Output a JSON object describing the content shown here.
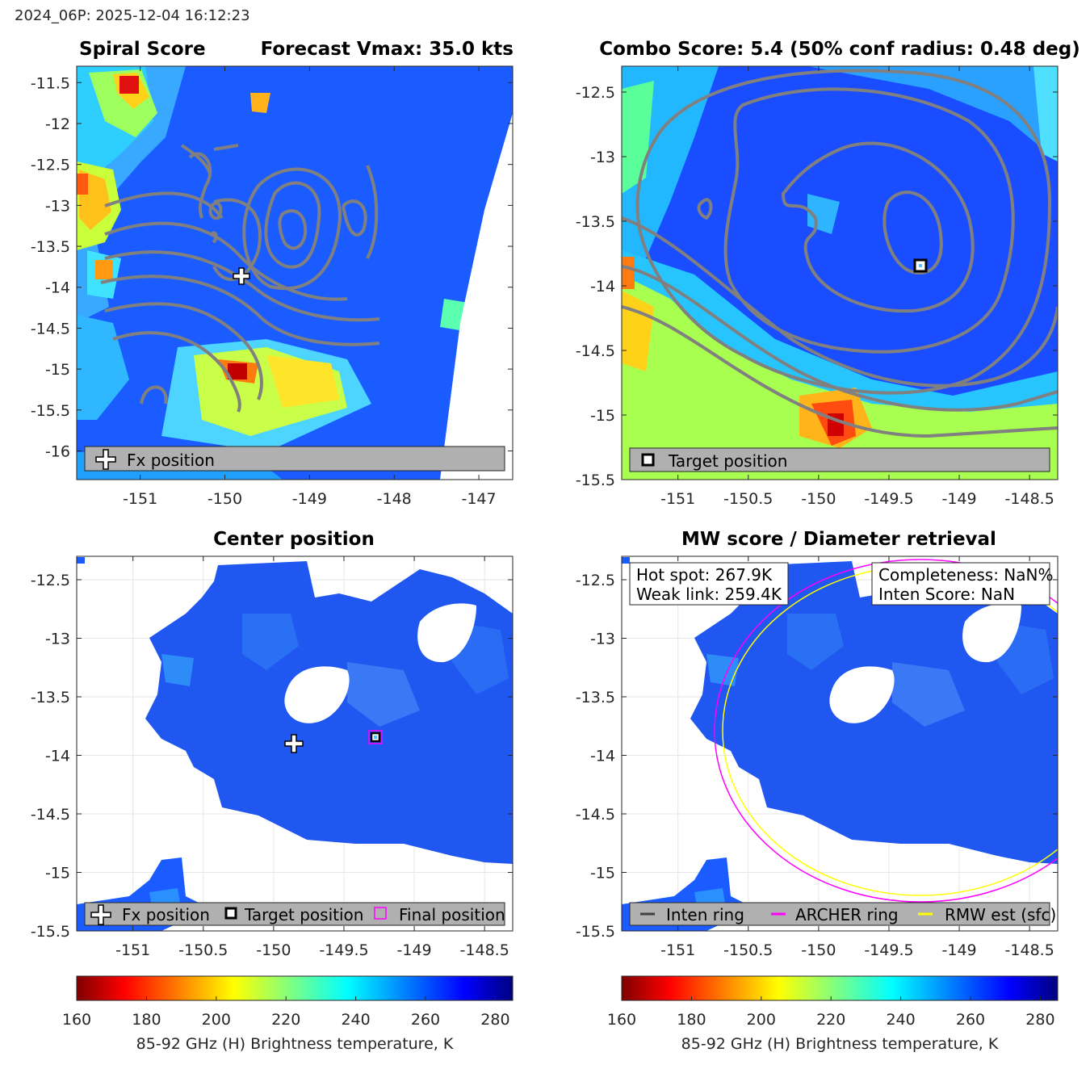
{
  "header": {
    "stamp": "2024_06P: 2025-12-04 16:12:23"
  },
  "chart_data": [
    {
      "type": "heatmap",
      "panel": "top-left",
      "title_left": "Spiral Score",
      "title_right": "Forecast Vmax: 35.0 kts",
      "xlim": [
        -151.75,
        -146.6
      ],
      "ylim": [
        -16.35,
        -11.3
      ],
      "xticks": [
        "-151",
        "-150",
        "-149",
        "-148",
        "-147"
      ],
      "xtick_values": [
        -151,
        -150,
        -149,
        -148,
        -147
      ],
      "yticks": [
        "-11.5",
        "-12",
        "-12.5",
        "-13",
        "-13.5",
        "-14",
        "-14.5",
        "-15",
        "-15.5",
        "-16"
      ],
      "ytick_values": [
        -11.5,
        -12,
        -12.5,
        -13,
        -13.5,
        -14,
        -14.5,
        -15,
        -15.5,
        -16
      ],
      "legend": [
        {
          "symbol": "plus",
          "label": "Fx position"
        }
      ],
      "markers": [
        {
          "name": "Fx position",
          "x": -149.8,
          "y": -13.9,
          "symbol": "plus"
        }
      ]
    },
    {
      "type": "heatmap",
      "panel": "top-right",
      "title": "Combo Score: 5.4  (50% conf radius: 0.48 deg)",
      "xlim": [
        -151.4,
        -148.3
      ],
      "ylim": [
        -15.5,
        -12.3
      ],
      "xticks": [
        "-151",
        "-150.5",
        "-150",
        "-149.5",
        "-149",
        "-148.5"
      ],
      "xtick_values": [
        -151,
        -150.5,
        -150,
        -149.5,
        -149,
        -148.5
      ],
      "yticks": [
        "-12.5",
        "-13",
        "-13.5",
        "-14",
        "-14.5",
        "-15",
        "-15.5"
      ],
      "ytick_values": [
        -12.5,
        -13,
        -13.5,
        -14,
        -14.5,
        -15,
        -15.5
      ],
      "legend": [
        {
          "symbol": "square",
          "label": "Target position"
        }
      ],
      "markers": [
        {
          "name": "Target position",
          "x": -149.18,
          "y": -13.85,
          "symbol": "square"
        }
      ]
    },
    {
      "type": "heatmap",
      "panel": "bottom-left",
      "title": "Center position",
      "xlim": [
        -151.4,
        -148.3
      ],
      "ylim": [
        -15.5,
        -12.3
      ],
      "xticks": [
        "-151",
        "-150.5",
        "-150",
        "-149.5",
        "-149",
        "-148.5"
      ],
      "xtick_values": [
        -151,
        -150.5,
        -150,
        -149.5,
        -149,
        -148.5
      ],
      "yticks": [
        "-12.5",
        "-13",
        "-13.5",
        "-14",
        "-14.5",
        "-15",
        "-15.5"
      ],
      "ytick_values": [
        -12.5,
        -13,
        -13.5,
        -14,
        -14.5,
        -15,
        -15.5
      ],
      "legend": [
        {
          "symbol": "plus",
          "label": "Fx position"
        },
        {
          "symbol": "square",
          "label": "Target position"
        },
        {
          "symbol": "magenta-square",
          "label": "Final position"
        }
      ],
      "markers": [
        {
          "name": "Fx position",
          "x": -149.8,
          "y": -13.9,
          "symbol": "plus"
        },
        {
          "name": "Target position",
          "x": -149.18,
          "y": -13.85,
          "symbol": "square"
        }
      ]
    },
    {
      "type": "heatmap",
      "panel": "bottom-right",
      "title": "MW score / Diameter retrieval",
      "xlim": [
        -151.4,
        -148.3
      ],
      "ylim": [
        -15.5,
        -12.3
      ],
      "xticks": [
        "-151",
        "-150.5",
        "-150",
        "-149.5",
        "-149",
        "-148.5"
      ],
      "xtick_values": [
        -151,
        -150.5,
        -150,
        -149.5,
        -149,
        -148.5
      ],
      "yticks": [
        "-12.5",
        "-13",
        "-13.5",
        "-14",
        "-14.5",
        "-15",
        "-15.5"
      ],
      "ytick_values": [
        -12.5,
        -13,
        -13.5,
        -14,
        -14.5,
        -15,
        -15.5
      ],
      "annotations_left": [
        "Hot spot: 267.9K",
        "Weak link: 259.4K"
      ],
      "annotations_right": [
        "Completeness: NaN%",
        "Inten Score: NaN"
      ],
      "legend": [
        {
          "symbol": "line",
          "color": "#404040",
          "label": "Inten ring"
        },
        {
          "symbol": "line",
          "color": "#ff00ff",
          "label": "ARCHER ring"
        },
        {
          "symbol": "line",
          "color": "#ffff00",
          "label": "RMW est (sfc)"
        }
      ]
    }
  ],
  "colorbar": {
    "min": 160,
    "max": 285,
    "ticks": [
      "160",
      "180",
      "200",
      "220",
      "240",
      "260",
      "280"
    ],
    "tick_values": [
      160,
      180,
      200,
      220,
      240,
      260,
      280
    ],
    "label": "85-92 GHz (H) Brightness temperature, K",
    "colormap": "jet-reversed"
  }
}
